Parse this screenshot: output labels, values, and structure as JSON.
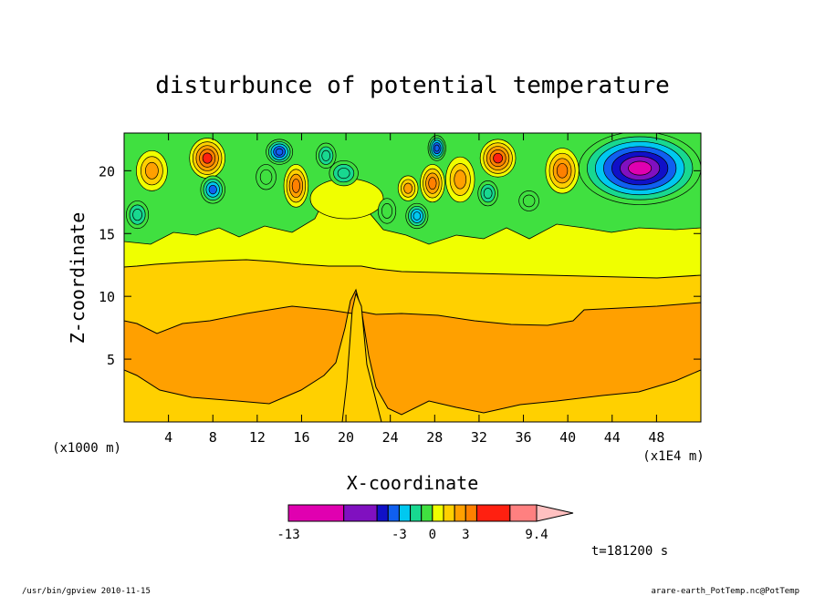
{
  "chart_data": {
    "type": "heatmap",
    "title": "disturbunce of potential temperature",
    "xlabel": "X-coordinate",
    "ylabel": "Z-coordinate",
    "x_unit_label": "(x1E4 m)",
    "y_unit_label": "(x1000 m)",
    "xlim": [
      0,
      52
    ],
    "ylim": [
      0,
      23
    ],
    "x_ticks": [
      4,
      8,
      12,
      16,
      20,
      24,
      28,
      32,
      36,
      40,
      44,
      48
    ],
    "y_ticks": [
      5,
      10,
      15,
      20
    ],
    "colorbar": {
      "labels": [
        "-13",
        "-3",
        "0",
        "3",
        "9.4"
      ],
      "label_values": [
        -13,
        -3,
        0,
        3,
        9.4
      ],
      "bins": [
        {
          "from": -13,
          "to": -8,
          "color": "#e000b0"
        },
        {
          "from": -8,
          "to": -5,
          "color": "#8010c0"
        },
        {
          "from": -5,
          "to": -4,
          "color": "#1010c8"
        },
        {
          "from": -4,
          "to": -3,
          "color": "#1060f0"
        },
        {
          "from": -3,
          "to": -2,
          "color": "#00c8f0"
        },
        {
          "from": -2,
          "to": -1,
          "color": "#18d890"
        },
        {
          "from": -1,
          "to": 0,
          "color": "#40e040"
        },
        {
          "from": 0,
          "to": 1,
          "color": "#f0ff00"
        },
        {
          "from": 1,
          "to": 2,
          "color": "#ffd000"
        },
        {
          "from": 2,
          "to": 3,
          "color": "#ffa000"
        },
        {
          "from": 3,
          "to": 4,
          "color": "#ff8000"
        },
        {
          "from": 4,
          "to": 7,
          "color": "#ff2010"
        },
        {
          "from": 7,
          "to": 9.4,
          "color": "#ff8080"
        },
        {
          "from": 9.4,
          "to": 12,
          "color": "#ffc0c0"
        }
      ]
    },
    "time_label": "t=181200 s"
  },
  "footer": {
    "left": "/usr/bin/gpview  2010-11-15",
    "right": "arare-earth_PotTemp.nc@PotTemp"
  }
}
